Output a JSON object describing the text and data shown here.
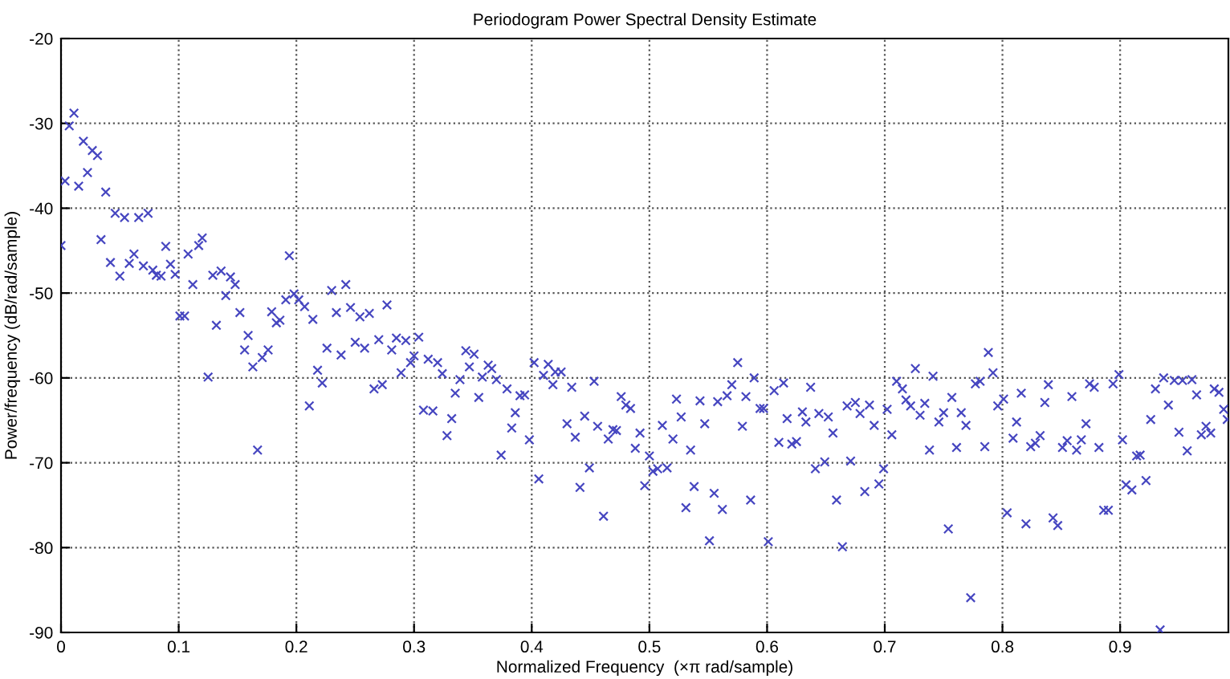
{
  "chart_data": {
    "type": "scatter",
    "title": "Periodogram Power Spectral Density Estimate",
    "xlabel": "Normalized Frequency  (×π rad/sample)",
    "ylabel": "Power/frequency (dB/rad/sample)",
    "xlim": [
      0,
      0.992
    ],
    "ylim": [
      -90,
      -20
    ],
    "xticks": [
      0,
      0.1,
      0.2,
      0.3,
      0.4,
      0.5,
      0.6,
      0.7,
      0.8,
      0.9
    ],
    "yticks": [
      -90,
      -80,
      -70,
      -60,
      -50,
      -40,
      -30,
      -20
    ],
    "grid": true,
    "marker": "cross",
    "series": [
      {
        "color": "#4646c0",
        "x": [
          0,
          0.0034,
          0.007,
          0.011,
          0.015,
          0.019,
          0.0225,
          0.0266,
          0.031,
          0.034,
          0.038,
          0.042,
          0.046,
          0.05,
          0.054,
          0.058,
          0.062,
          0.066,
          0.07,
          0.074,
          0.078,
          0.081,
          0.085,
          0.089,
          0.093,
          0.097,
          0.101,
          0.105,
          0.108,
          0.112,
          0.117,
          0.12,
          0.125,
          0.129,
          0.132,
          0.136,
          0.14,
          0.144,
          0.148,
          0.152,
          0.156,
          0.159,
          0.163,
          0.167,
          0.171,
          0.176,
          0.179,
          0.183,
          0.186,
          0.191,
          0.194,
          0.198,
          0.202,
          0.207,
          0.211,
          0.214,
          0.218,
          0.222,
          0.226,
          0.23,
          0.234,
          0.238,
          0.242,
          0.246,
          0.25,
          0.254,
          0.258,
          0.262,
          0.266,
          0.27,
          0.273,
          0.277,
          0.281,
          0.285,
          0.289,
          0.293,
          0.297,
          0.3,
          0.304,
          0.308,
          0.312,
          0.316,
          0.32,
          0.324,
          0.328,
          0.332,
          0.335,
          0.339,
          0.344,
          0.347,
          0.351,
          0.355,
          0.358,
          0.363,
          0.366,
          0.37,
          0.374,
          0.379,
          0.383,
          0.386,
          0.39,
          0.394,
          0.398,
          0.402,
          0.406,
          0.41,
          0.414,
          0.418,
          0.42,
          0.425,
          0.43,
          0.434,
          0.437,
          0.441,
          0.445,
          0.449,
          0.453,
          0.456,
          0.461,
          0.465,
          0.469,
          0.472,
          0.476,
          0.48,
          0.484,
          0.488,
          0.492,
          0.496,
          0.5,
          0.503,
          0.507,
          0.511,
          0.515,
          0.52,
          0.523,
          0.527,
          0.531,
          0.535,
          0.538,
          0.543,
          0.547,
          0.551,
          0.555,
          0.558,
          0.562,
          0.566,
          0.57,
          0.575,
          0.579,
          0.582,
          0.586,
          0.589,
          0.594,
          0.597,
          0.601,
          0.606,
          0.61,
          0.614,
          0.617,
          0.621,
          0.625,
          0.63,
          0.633,
          0.637,
          0.641,
          0.644,
          0.649,
          0.652,
          0.656,
          0.659,
          0.664,
          0.668,
          0.671,
          0.675,
          0.679,
          0.683,
          0.687,
          0.691,
          0.695,
          0.699,
          0.702,
          0.706,
          0.71,
          0.715,
          0.718,
          0.722,
          0.726,
          0.73,
          0.734,
          0.738,
          0.741,
          0.746,
          0.75,
          0.754,
          0.757,
          0.761,
          0.765,
          0.769,
          0.773,
          0.777,
          0.781,
          0.785,
          0.788,
          0.792,
          0.796,
          0.801,
          0.804,
          0.809,
          0.812,
          0.816,
          0.82,
          0.824,
          0.828,
          0.832,
          0.836,
          0.839,
          0.843,
          0.847,
          0.851,
          0.855,
          0.859,
          0.863,
          0.867,
          0.871,
          0.874,
          0.878,
          0.882,
          0.886,
          0.89,
          0.894,
          0.899,
          0.902,
          0.905,
          0.91,
          0.914,
          0.917,
          0.922,
          0.926,
          0.93,
          0.934,
          0.937,
          0.941,
          0.946,
          0.95,
          0.953,
          0.957,
          0.961,
          0.965,
          0.969,
          0.973,
          0.977,
          0.98,
          0.984,
          0.988,
          0.991
        ],
        "values": [
          -44.4,
          -36.8,
          -30.3,
          -28.8,
          -37.4,
          -32.1,
          -35.8,
          -33.2,
          -33.8,
          -43.7,
          -38.1,
          -46.4,
          -40.6,
          -48.0,
          -41.1,
          -46.5,
          -45.4,
          -41.1,
          -46.8,
          -40.6,
          -47.3,
          -47.9,
          -48.0,
          -44.5,
          -46.6,
          -47.8,
          -52.7,
          -52.7,
          -45.4,
          -49.0,
          -44.4,
          -43.5,
          -59.9,
          -47.9,
          -53.8,
          -47.4,
          -50.3,
          -48.1,
          -49.0,
          -52.3,
          -56.7,
          -55.0,
          -58.7,
          -68.5,
          -57.6,
          -56.7,
          -52.2,
          -53.5,
          -53.2,
          -50.8,
          -45.6,
          -50.1,
          -50.8,
          -51.6,
          -63.3,
          -53.1,
          -59.1,
          -60.6,
          -56.5,
          -49.7,
          -52.3,
          -57.3,
          -49.0,
          -51.7,
          -55.8,
          -52.8,
          -56.5,
          -52.4,
          -61.3,
          -55.5,
          -60.8,
          -51.4,
          -56.7,
          -55.3,
          -59.4,
          -55.6,
          -58.2,
          -57.4,
          -55.2,
          -63.8,
          -57.8,
          -63.9,
          -58.2,
          -59.5,
          -66.8,
          -64.8,
          -61.8,
          -60.2,
          -56.8,
          -58.7,
          -57.2,
          -62.3,
          -59.9,
          -58.5,
          -58.9,
          -60.2,
          -69.1,
          -61.3,
          -65.9,
          -64.1,
          -62.1,
          -62.0,
          -67.3,
          -58.2,
          -71.9,
          -59.7,
          -58.4,
          -60.8,
          -59.3,
          -59.3,
          -65.4,
          -61.1,
          -67.0,
          -72.9,
          -64.5,
          -70.6,
          -60.4,
          -65.7,
          -76.3,
          -67.2,
          -66.1,
          -66.2,
          -62.2,
          -63.2,
          -63.6,
          -68.3,
          -66.5,
          -72.7,
          -69.2,
          -71.0,
          -70.7,
          -65.6,
          -70.6,
          -67.2,
          -62.5,
          -64.6,
          -75.3,
          -68.5,
          -72.8,
          -62.7,
          -65.4,
          -79.2,
          -73.6,
          -62.8,
          -75.5,
          -62.1,
          -60.8,
          -58.2,
          -65.7,
          -62.2,
          -74.4,
          -60.0,
          -63.6,
          -63.6,
          -79.3,
          -61.5,
          -67.6,
          -60.6,
          -64.8,
          -67.8,
          -67.5,
          -64.0,
          -65.2,
          -61.1,
          -70.7,
          -64.2,
          -69.9,
          -64.6,
          -66.5,
          -74.4,
          -79.9,
          -63.3,
          -69.8,
          -62.9,
          -64.2,
          -73.4,
          -63.2,
          -65.6,
          -72.5,
          -70.7,
          -63.7,
          -66.7,
          -60.4,
          -61.3,
          -62.6,
          -63.3,
          -58.9,
          -64.4,
          -63.0,
          -68.5,
          -59.8,
          -65.2,
          -64.1,
          -77.8,
          -62.3,
          -68.2,
          -64.1,
          -65.6,
          -85.9,
          -60.7,
          -60.4,
          -68.1,
          -57.0,
          -59.4,
          -63.3,
          -62.5,
          -75.9,
          -67.1,
          -65.2,
          -61.8,
          -77.2,
          -68.1,
          -67.7,
          -66.8,
          -62.9,
          -60.8,
          -76.5,
          -77.4,
          -68.2,
          -67.4,
          -62.2,
          -68.5,
          -67.3,
          -65.4,
          -60.7,
          -61.1,
          -68.2,
          -75.6,
          -75.6,
          -60.7,
          -59.6,
          -67.3,
          -72.6,
          -73.2,
          -69.2,
          -69.1,
          -72.1,
          -64.9,
          -61.3,
          -89.7,
          -60.0,
          -63.2,
          -60.3,
          -66.4,
          -60.3,
          -68.6,
          -60.2,
          -62.0,
          -66.7,
          -65.7,
          -66.5,
          -61.3,
          -61.7,
          -63.7,
          -64.9
        ]
      }
    ]
  }
}
